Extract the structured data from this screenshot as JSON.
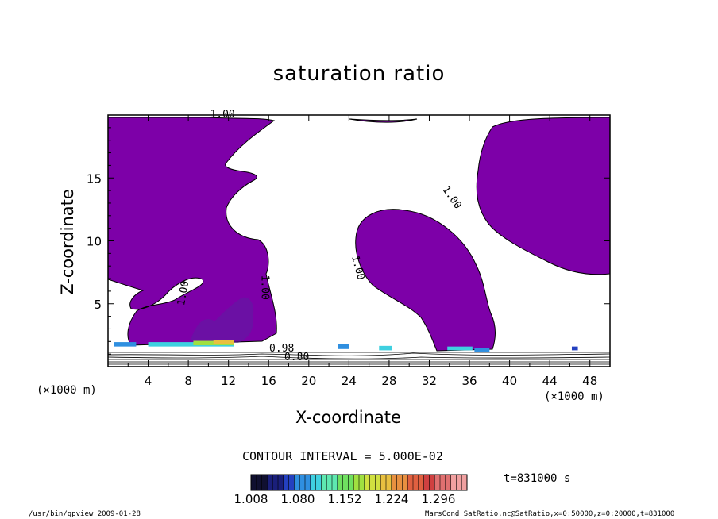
{
  "chart_data": {
    "type": "heatmap",
    "title": "saturation ratio",
    "xlabel": "X-coordinate",
    "ylabel": "Z-coordinate",
    "x_unit_left": "(×1000 m)",
    "x_unit_right": "(×1000 m)",
    "xlim": [
      0,
      50
    ],
    "ylim": [
      0,
      20
    ],
    "x_ticks": [
      4,
      8,
      12,
      16,
      20,
      24,
      28,
      32,
      36,
      40,
      44,
      48
    ],
    "y_ticks": [
      5,
      10,
      15
    ],
    "contour_labels": [
      {
        "text": "1.00",
        "x": 11.4,
        "z": 19.8,
        "rotate": 0
      },
      {
        "text": "1.00",
        "x": 34.0,
        "z": 13.3,
        "rotate": 55
      },
      {
        "text": "1.00",
        "x": 24.6,
        "z": 7.8,
        "rotate": 75
      },
      {
        "text": "1.00",
        "x": 7.8,
        "z": 5.8,
        "rotate": -80
      },
      {
        "text": "1.00",
        "x": 15.3,
        "z": 6.3,
        "rotate": 90
      },
      {
        "text": "0.98",
        "x": 17.3,
        "z": 1.2,
        "rotate": 0
      },
      {
        "text": "0.80",
        "x": 18.8,
        "z": 0.5,
        "rotate": 0
      }
    ],
    "contour_interval_text": "CONTOUR INTERVAL = 5.000E-02",
    "colorbar": {
      "ticks": [
        "1.008",
        "1.080",
        "1.152",
        "1.224",
        "1.296"
      ],
      "min": 1.008,
      "max": 1.34,
      "colors": [
        "#101030",
        "#1a1f7a",
        "#2440c0",
        "#2f8fe0",
        "#3fd0e0",
        "#5ee8b0",
        "#6fe060",
        "#a0e040",
        "#d0e040",
        "#e8c040",
        "#e89040",
        "#e06040",
        "#d04040",
        "#e07070",
        "#f0a0a0"
      ]
    },
    "time_label": "t=831000 s",
    "saturated_fill_color": "#7d00a8",
    "hot_spots": [
      {
        "x": 0.6,
        "z": 1.6,
        "w": 2.2,
        "h": 0.35,
        "color": "#2f8fe0"
      },
      {
        "x": 4.0,
        "z": 1.6,
        "w": 8.5,
        "h": 0.35,
        "color": "#3fd0e0"
      },
      {
        "x": 8.5,
        "z": 1.7,
        "w": 4.0,
        "h": 0.35,
        "color": "#a0e040"
      },
      {
        "x": 10.5,
        "z": 1.8,
        "w": 2.0,
        "h": 0.3,
        "color": "#e8c040"
      },
      {
        "x": 22.9,
        "z": 1.4,
        "w": 1.1,
        "h": 0.4,
        "color": "#2f8fe0"
      },
      {
        "x": 27.0,
        "z": 1.3,
        "w": 1.3,
        "h": 0.35,
        "color": "#3fd0e0"
      },
      {
        "x": 33.8,
        "z": 1.3,
        "w": 2.5,
        "h": 0.3,
        "color": "#3fd0e0"
      },
      {
        "x": 36.5,
        "z": 1.2,
        "w": 1.5,
        "h": 0.3,
        "color": "#2f8fe0"
      },
      {
        "x": 46.2,
        "z": 1.3,
        "w": 0.6,
        "h": 0.3,
        "color": "#2440c0"
      }
    ]
  },
  "footer": {
    "left": "/usr/bin/gpview  2009-01-28",
    "right": "MarsCond_SatRatio.nc@SatRatio,x=0:50000,z=0:20000,t=831000"
  }
}
